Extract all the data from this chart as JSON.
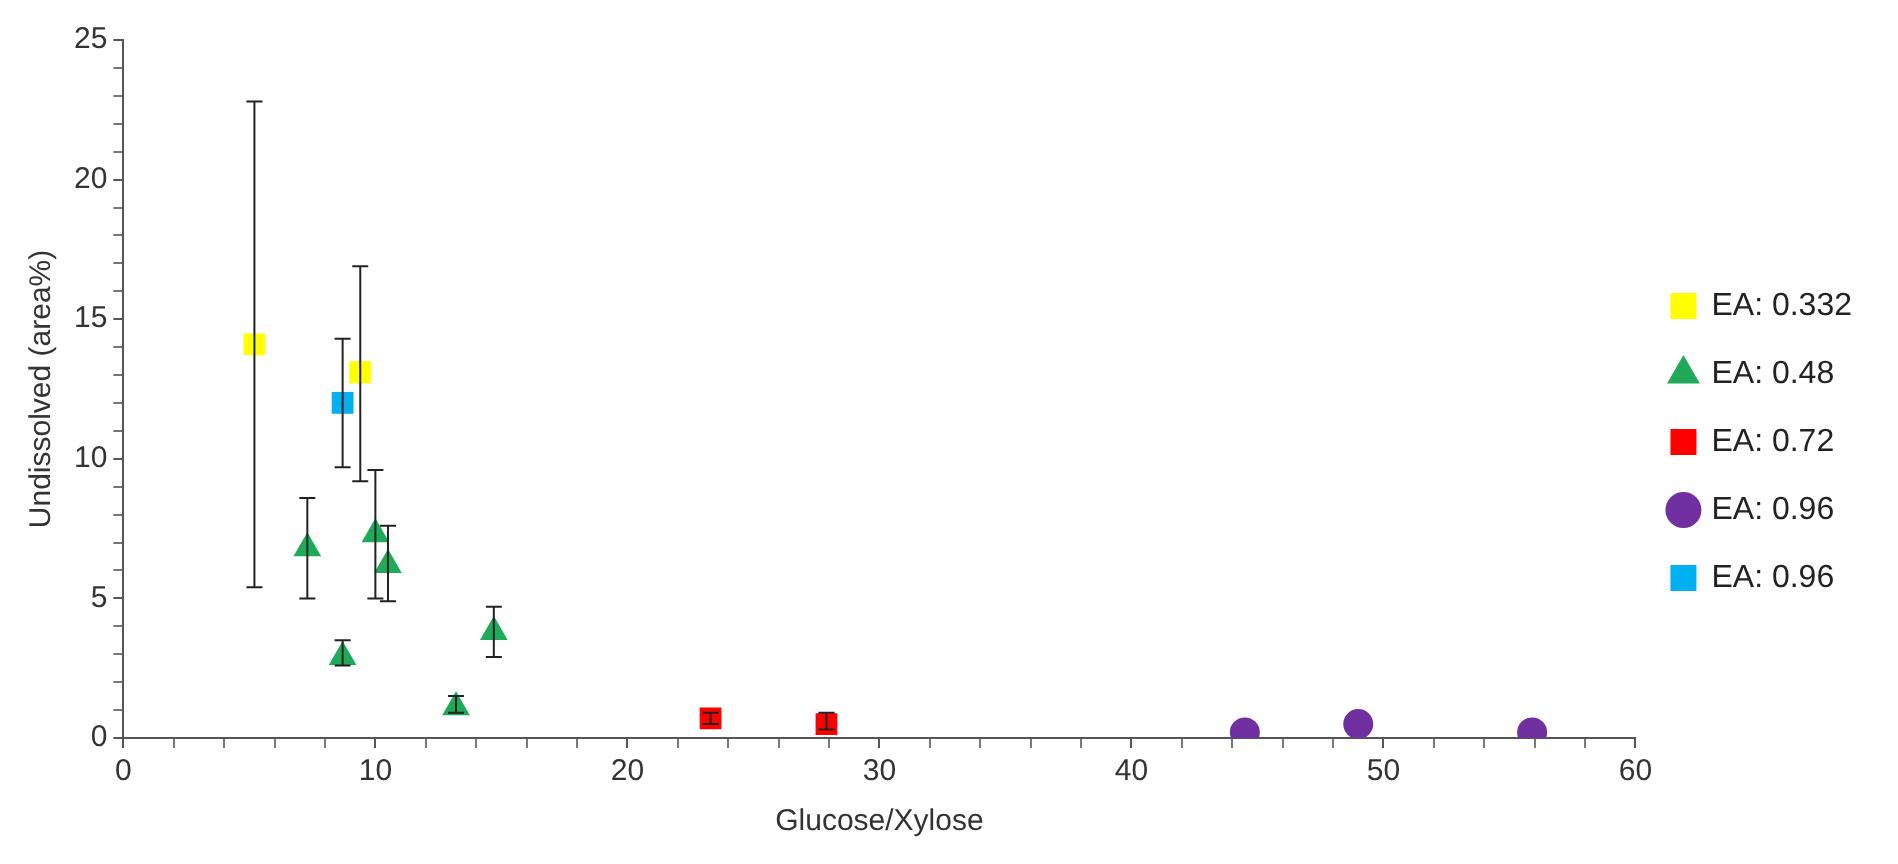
{
  "chart_data": {
    "type": "scatter",
    "xlabel": "Glucose/Xylose",
    "ylabel": "Undissolved (area%)",
    "legend": "right",
    "grid": false,
    "xlim": [
      0,
      60
    ],
    "ylim": [
      0,
      25
    ],
    "xticks": [
      0,
      {
        "value": 2,
        "label": null
      },
      {
        "value": 4,
        "label": null
      },
      {
        "value": 6,
        "label": null
      },
      {
        "value": 8,
        "label": null
      },
      10,
      {
        "value": 12,
        "label": null
      },
      {
        "value": 14,
        "label": null
      },
      {
        "value": 16,
        "label": null
      },
      {
        "value": 18,
        "label": null
      },
      20,
      {
        "value": 22,
        "label": null
      },
      {
        "value": 24,
        "label": null
      },
      {
        "value": 26,
        "label": null
      },
      {
        "value": 28,
        "label": null
      },
      30,
      {
        "value": 32,
        "label": null
      },
      {
        "value": 34,
        "label": null
      },
      {
        "value": 36,
        "label": null
      },
      {
        "value": 38,
        "label": null
      },
      40,
      {
        "value": 42,
        "label": null
      },
      {
        "value": 44,
        "label": null
      },
      {
        "value": 46,
        "label": null
      },
      {
        "value": 48,
        "label": null
      },
      50,
      {
        "value": 52,
        "label": null
      },
      {
        "value": 54,
        "label": null
      },
      {
        "value": 56,
        "label": null
      },
      {
        "value": 58,
        "label": null
      },
      60
    ],
    "yticks": [
      0,
      {
        "value": 1,
        "label": null
      },
      {
        "value": 2,
        "label": null
      },
      {
        "value": 3,
        "label": null
      },
      {
        "value": 4,
        "label": null
      },
      5,
      {
        "value": 6,
        "label": null
      },
      {
        "value": 7,
        "label": null
      },
      {
        "value": 8,
        "label": null
      },
      {
        "value": 9,
        "label": null
      },
      10,
      {
        "value": 11,
        "label": null
      },
      {
        "value": 12,
        "label": null
      },
      {
        "value": 13,
        "label": null
      },
      {
        "value": 14,
        "label": null
      },
      15,
      {
        "value": 16,
        "label": null
      },
      {
        "value": 17,
        "label": null
      },
      {
        "value": 18,
        "label": null
      },
      {
        "value": 19,
        "label": null
      },
      20,
      {
        "value": 21,
        "label": null
      },
      {
        "value": 22,
        "label": null
      },
      {
        "value": 23,
        "label": null
      },
      {
        "value": 24,
        "label": null
      },
      25
    ],
    "series": [
      {
        "name": "EA: 0.332",
        "color": "#ffff00",
        "marker": "square",
        "x": [
          5.2,
          9.4
        ],
        "values": [
          14.1,
          13.1
        ],
        "errors": [
          [
            5.4,
            22.8
          ],
          [
            9.2,
            16.9
          ]
        ]
      },
      {
        "name": "EA: 0.48",
        "color": "#1faa5a",
        "marker": "triangle",
        "x": [
          7.3,
          8.7,
          10.0,
          10.5,
          13.2,
          14.7
        ],
        "values": [
          6.8,
          2.9,
          7.3,
          6.2,
          1.1,
          3.8
        ],
        "errors": [
          [
            5.0,
            8.6
          ],
          [
            2.6,
            3.5
          ],
          [
            5.0,
            9.6
          ],
          [
            4.9,
            7.6
          ],
          [
            0.9,
            1.5
          ],
          [
            2.9,
            4.7
          ]
        ]
      },
      {
        "name": "EA: 0.72",
        "color": "#ff0000",
        "marker": "square",
        "x": [
          23.3,
          27.9
        ],
        "values": [
          0.7,
          0.5
        ],
        "errors": [
          [
            0.5,
            0.9
          ],
          [
            0.3,
            0.9
          ]
        ]
      },
      {
        "name": "EA: 0.96",
        "color": "#7030a0",
        "marker": "circle",
        "x": [
          44.5,
          49.0,
          55.9
        ],
        "values": [
          0.2,
          0.5,
          0.2
        ]
      },
      {
        "name": "EA: 0.96",
        "color": "#00b0f0",
        "marker": "square",
        "x": [
          8.7
        ],
        "values": [
          12.0
        ],
        "errors": [
          [
            9.7,
            14.3
          ]
        ]
      }
    ]
  }
}
